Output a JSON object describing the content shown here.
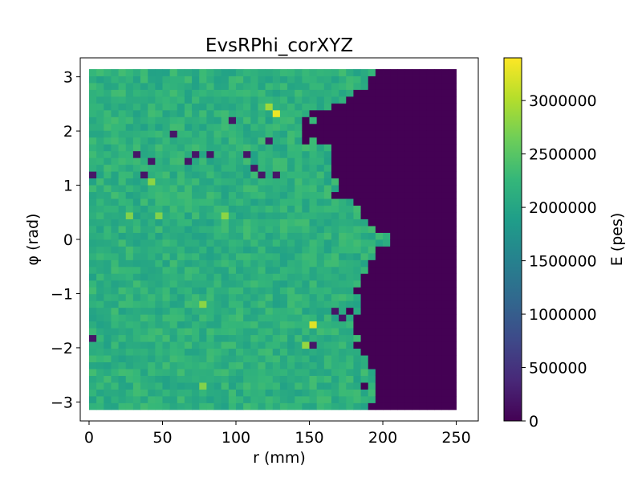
{
  "chart_data": {
    "type": "heatmap",
    "title": "EvsRPhi_corXYZ",
    "xlabel": "r (mm)",
    "ylabel": "φ (rad)",
    "colorbar_label": "E (pes)",
    "colormap": "viridis",
    "xlim": [
      -6,
      265
    ],
    "ylim": [
      -3.35,
      3.35
    ],
    "x_range": [
      0,
      250
    ],
    "y_range": [
      -3.1416,
      3.1416
    ],
    "x_bins": 50,
    "y_bins": 50,
    "x_ticks": [
      "0",
      "50",
      "100",
      "150",
      "200",
      "250"
    ],
    "x_tick_values": [
      0,
      50,
      100,
      150,
      200,
      250
    ],
    "y_ticks": [
      "−3",
      "−2",
      "−1",
      "0",
      "1",
      "2",
      "3"
    ],
    "y_tick_values": [
      -3,
      -2,
      -1,
      0,
      1,
      2,
      3
    ],
    "color_range": [
      0,
      3400000
    ],
    "colorbar_ticks": [
      "0",
      "500000",
      "1000000",
      "1500000",
      "2000000",
      "2500000",
      "3000000"
    ],
    "colorbar_tick_values": [
      0,
      500000,
      1000000,
      1500000,
      2000000,
      2500000,
      3000000
    ],
    "typical_value": 2150000,
    "edge_profile": [
      {
        "phi": 3.14,
        "r_max": 200
      },
      {
        "phi": 2.9,
        "r_max": 190
      },
      {
        "phi": 2.6,
        "r_max": 175
      },
      {
        "phi": 2.3,
        "r_max": 150
      },
      {
        "phi": 2.0,
        "r_max": 140
      },
      {
        "phi": 1.7,
        "r_max": 160
      },
      {
        "phi": 1.2,
        "r_max": 165
      },
      {
        "phi": 0.8,
        "r_max": 170
      },
      {
        "phi": 0.4,
        "r_max": 185
      },
      {
        "phi": 0.0,
        "r_max": 200
      },
      {
        "phi": -0.5,
        "r_max": 190
      },
      {
        "phi": -1.0,
        "r_max": 185
      },
      {
        "phi": -1.5,
        "r_max": 180
      },
      {
        "phi": -2.0,
        "r_max": 185
      },
      {
        "phi": -2.5,
        "r_max": 190
      },
      {
        "phi": -3.14,
        "r_max": 195
      }
    ],
    "low_cells": [
      {
        "r": 2.5,
        "phi": 1.2,
        "value": 200000
      },
      {
        "r": 2.5,
        "phi": -1.85,
        "value": 200000
      },
      {
        "r": 32.5,
        "phi": 1.55,
        "value": 200000
      },
      {
        "r": 37.5,
        "phi": 1.2,
        "value": 200000
      },
      {
        "r": 42.5,
        "phi": 1.4,
        "value": 200000
      },
      {
        "r": 57.5,
        "phi": 1.95,
        "value": 200000
      },
      {
        "r": 67.5,
        "phi": 1.4,
        "value": 200000
      },
      {
        "r": 72.5,
        "phi": 1.6,
        "value": 200000
      },
      {
        "r": 82.5,
        "phi": 1.6,
        "value": 200000
      },
      {
        "r": 97.5,
        "phi": 2.2,
        "value": 200000
      },
      {
        "r": 107.5,
        "phi": 1.55,
        "value": 200000
      },
      {
        "r": 112.5,
        "phi": 1.3,
        "value": 200000
      },
      {
        "r": 117.5,
        "phi": 1.2,
        "value": 200000
      },
      {
        "r": 122.5,
        "phi": 1.85,
        "value": 200000
      },
      {
        "r": 127.5,
        "phi": 1.2,
        "value": 200000
      },
      {
        "r": 152.5,
        "phi": -1.95,
        "value": 200000
      },
      {
        "r": 167.5,
        "phi": -1.3,
        "value": 200000
      },
      {
        "r": 172.5,
        "phi": -1.5,
        "value": 200000
      }
    ],
    "high_cells": [
      {
        "r": 127.5,
        "phi": 2.3,
        "value": 3300000
      },
      {
        "r": 152.5,
        "phi": -1.6,
        "value": 3250000
      },
      {
        "r": 122.5,
        "phi": 2.45,
        "value": 2900000
      },
      {
        "r": 147.5,
        "phi": -1.95,
        "value": 2850000
      },
      {
        "r": 77.5,
        "phi": -1.2,
        "value": 2800000
      },
      {
        "r": 92.5,
        "phi": 0.45,
        "value": 2800000
      },
      {
        "r": 27.5,
        "phi": 0.45,
        "value": 2750000
      },
      {
        "r": 42.5,
        "phi": 1.05,
        "value": 2800000
      },
      {
        "r": 47.5,
        "phi": 0.45,
        "value": 2750000
      },
      {
        "r": 77.5,
        "phi": -2.75,
        "value": 2750000
      }
    ],
    "grid": false,
    "colorbar_position": "right"
  }
}
